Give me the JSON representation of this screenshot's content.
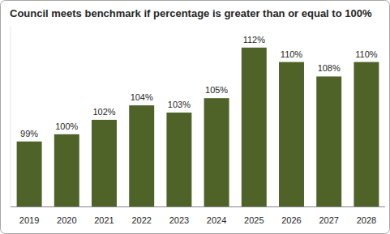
{
  "chart_data": {
    "type": "bar",
    "title": "Council meets benchmark if percentage is greater than or equal to 100%",
    "categories": [
      "2019",
      "2020",
      "2021",
      "2022",
      "2023",
      "2024",
      "2025",
      "2026",
      "2027",
      "2028"
    ],
    "values": [
      99,
      100,
      102,
      104,
      103,
      105,
      112,
      110,
      108,
      110
    ],
    "value_labels": [
      "99%",
      "100%",
      "102%",
      "104%",
      "103%",
      "105%",
      "112%",
      "110%",
      "108%",
      "110%"
    ],
    "color": "#4f6228",
    "ylim": [
      90,
      115
    ],
    "yticks": [],
    "grid": false,
    "data_labels": true,
    "tick_labels": "x"
  }
}
